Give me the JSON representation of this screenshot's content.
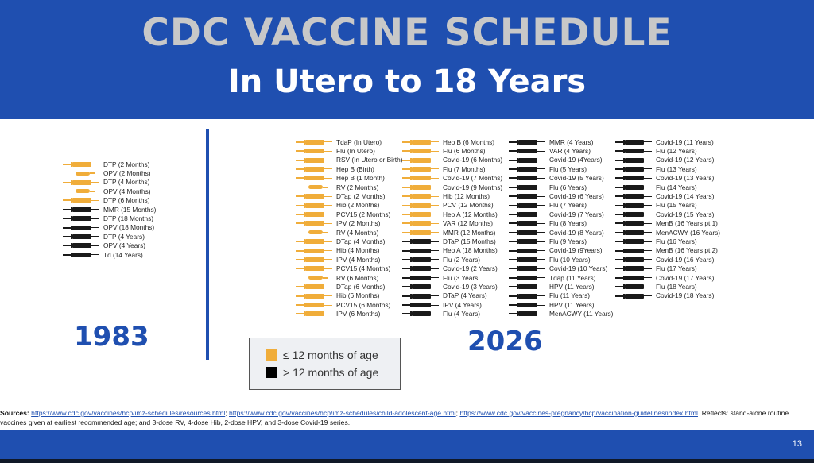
{
  "slide": {
    "title": "CDC VACCINE SCHEDULE",
    "subtitle": "In Utero to 18 Years",
    "page_number": "13"
  },
  "colors": {
    "yellow": "#f0ad3a",
    "black": "#1a1a1a",
    "brand_blue": "#1f4fb0"
  },
  "year_1983": "1983",
  "year_2026": "2026",
  "legend": {
    "yellow_label": "≤ 12 months of age",
    "black_label": "> 12 months of age"
  },
  "columns": [
    {
      "items": [
        {
          "label": "DTP (2 Months)",
          "color": "yellow",
          "kind": "injection"
        },
        {
          "label": "OPV (2 Months)",
          "color": "yellow",
          "kind": "oral"
        },
        {
          "label": "DTP (4 Months)",
          "color": "yellow",
          "kind": "injection"
        },
        {
          "label": "OPV (4 Months)",
          "color": "yellow",
          "kind": "oral"
        },
        {
          "label": "DTP (6 Months)",
          "color": "yellow",
          "kind": "injection"
        },
        {
          "label": "MMR (15 Months)",
          "color": "black",
          "kind": "injection"
        },
        {
          "label": "DTP (18 Months)",
          "color": "black",
          "kind": "injection"
        },
        {
          "label": "OPV (18 Months)",
          "color": "black",
          "kind": "injection"
        },
        {
          "label": "DTP (4 Years)",
          "color": "black",
          "kind": "injection"
        },
        {
          "label": "OPV (4 Years)",
          "color": "black",
          "kind": "injection"
        },
        {
          "label": "Td (14 Years)",
          "color": "black",
          "kind": "injection"
        }
      ]
    },
    {
      "items": [
        {
          "label": "TdaP (In Utero)",
          "color": "yellow",
          "kind": "injection"
        },
        {
          "label": "Flu (In Utero)",
          "color": "yellow",
          "kind": "injection"
        },
        {
          "label": "RSV (In Utero or Birth)",
          "color": "yellow",
          "kind": "injection"
        },
        {
          "label": "Hep B (Birth)",
          "color": "yellow",
          "kind": "injection"
        },
        {
          "label": "Hep B (1 Month)",
          "color": "yellow",
          "kind": "injection"
        },
        {
          "label": "RV (2 Months)",
          "color": "yellow",
          "kind": "oral"
        },
        {
          "label": "DTap (2 Months)",
          "color": "yellow",
          "kind": "injection"
        },
        {
          "label": "Hib (2 Months)",
          "color": "yellow",
          "kind": "injection"
        },
        {
          "label": "PCV15 (2 Months)",
          "color": "yellow",
          "kind": "injection"
        },
        {
          "label": "IPV (2 Months)",
          "color": "yellow",
          "kind": "injection"
        },
        {
          "label": "RV (4 Months)",
          "color": "yellow",
          "kind": "oral"
        },
        {
          "label": "DTap (4 Months)",
          "color": "yellow",
          "kind": "injection"
        },
        {
          "label": "Hib (4 Months)",
          "color": "yellow",
          "kind": "injection"
        },
        {
          "label": "IPV (4 Months)",
          "color": "yellow",
          "kind": "injection"
        },
        {
          "label": "PCV15 (4 Months)",
          "color": "yellow",
          "kind": "injection"
        },
        {
          "label": "RV (6 Months)",
          "color": "yellow",
          "kind": "oral"
        },
        {
          "label": "DTap (6 Months)",
          "color": "yellow",
          "kind": "injection"
        },
        {
          "label": "Hib (6 Months)",
          "color": "yellow",
          "kind": "injection"
        },
        {
          "label": "PCV15 (6 Months)",
          "color": "yellow",
          "kind": "injection"
        },
        {
          "label": "IPV (6 Months)",
          "color": "yellow",
          "kind": "injection"
        }
      ]
    },
    {
      "items": [
        {
          "label": "Hep B (6 Months)",
          "color": "yellow",
          "kind": "injection"
        },
        {
          "label": "Flu (6 Months)",
          "color": "yellow",
          "kind": "injection"
        },
        {
          "label": "Covid-19 (6 Months)",
          "color": "yellow",
          "kind": "injection"
        },
        {
          "label": "Flu (7 Months)",
          "color": "yellow",
          "kind": "injection"
        },
        {
          "label": "Covid-19 (7 Months)",
          "color": "yellow",
          "kind": "injection"
        },
        {
          "label": "Covid-19 (9 Months)",
          "color": "yellow",
          "kind": "injection"
        },
        {
          "label": "Hib (12 Months)",
          "color": "yellow",
          "kind": "injection"
        },
        {
          "label": "PCV (12 Months)",
          "color": "yellow",
          "kind": "injection"
        },
        {
          "label": "Hep A (12 Months)",
          "color": "yellow",
          "kind": "injection"
        },
        {
          "label": "VAR (12 Months)",
          "color": "yellow",
          "kind": "injection"
        },
        {
          "label": "MMR (12 Months)",
          "color": "yellow",
          "kind": "injection"
        },
        {
          "label": "DTaP (15 Months)",
          "color": "black",
          "kind": "injection"
        },
        {
          "label": "Hep A (18 Months)",
          "color": "black",
          "kind": "injection"
        },
        {
          "label": "Flu (2 Years)",
          "color": "black",
          "kind": "injection"
        },
        {
          "label": "Covid-19 (2 Years)",
          "color": "black",
          "kind": "injection"
        },
        {
          "label": "Flu (3 Years",
          "color": "black",
          "kind": "injection"
        },
        {
          "label": "Covid-19 (3 Years)",
          "color": "black",
          "kind": "injection"
        },
        {
          "label": "DTaP (4 Years)",
          "color": "black",
          "kind": "injection"
        },
        {
          "label": "IPV (4 Years)",
          "color": "black",
          "kind": "injection"
        },
        {
          "label": "Flu (4 Years)",
          "color": "black",
          "kind": "injection"
        }
      ]
    },
    {
      "items": [
        {
          "label": "MMR (4 Years)",
          "color": "black",
          "kind": "injection"
        },
        {
          "label": "VAR (4 Years)",
          "color": "black",
          "kind": "injection"
        },
        {
          "label": "Covid-19 (4Years)",
          "color": "black",
          "kind": "injection"
        },
        {
          "label": "Flu (5 Years)",
          "color": "black",
          "kind": "injection"
        },
        {
          "label": "Covid-19 (5 Years)",
          "color": "black",
          "kind": "injection"
        },
        {
          "label": "Flu (6 Years)",
          "color": "black",
          "kind": "injection"
        },
        {
          "label": "Covid-19 (6 Years)",
          "color": "black",
          "kind": "injection"
        },
        {
          "label": "Flu (7 Years)",
          "color": "black",
          "kind": "injection"
        },
        {
          "label": "Covid-19 (7 Years)",
          "color": "black",
          "kind": "injection"
        },
        {
          "label": "Flu (8 Years)",
          "color": "black",
          "kind": "injection"
        },
        {
          "label": "Covid-19 (8 Years)",
          "color": "black",
          "kind": "injection"
        },
        {
          "label": "Flu (9 Years)",
          "color": "black",
          "kind": "injection"
        },
        {
          "label": "Covid-19 (9Years)",
          "color": "black",
          "kind": "injection"
        },
        {
          "label": "Flu (10 Years)",
          "color": "black",
          "kind": "injection"
        },
        {
          "label": "Covid-19 (10 Years)",
          "color": "black",
          "kind": "injection"
        },
        {
          "label": "Tdap (11 Years)",
          "color": "black",
          "kind": "injection"
        },
        {
          "label": "HPV (11 Years)",
          "color": "black",
          "kind": "injection"
        },
        {
          "label": "Flu (11 Years)",
          "color": "black",
          "kind": "injection"
        },
        {
          "label": "HPV (11 Years)",
          "color": "black",
          "kind": "injection"
        },
        {
          "label": "MenACWY (11 Years)",
          "color": "black",
          "kind": "injection"
        }
      ]
    },
    {
      "items": [
        {
          "label": "Covid-19 (11 Years)",
          "color": "black",
          "kind": "injection"
        },
        {
          "label": "Flu (12 Years)",
          "color": "black",
          "kind": "injection"
        },
        {
          "label": "Covid-19 (12 Years)",
          "color": "black",
          "kind": "injection"
        },
        {
          "label": "Flu (13 Years)",
          "color": "black",
          "kind": "injection"
        },
        {
          "label": "Covid-19 (13 Years)",
          "color": "black",
          "kind": "injection"
        },
        {
          "label": "Flu (14 Years)",
          "color": "black",
          "kind": "injection"
        },
        {
          "label": "Covid-19 (14 Years)",
          "color": "black",
          "kind": "injection"
        },
        {
          "label": "Flu (15 Years)",
          "color": "black",
          "kind": "injection"
        },
        {
          "label": "Covid-19 (15 Years)",
          "color": "black",
          "kind": "injection"
        },
        {
          "label": "MenB (16 Years pt.1)",
          "color": "black",
          "kind": "injection"
        },
        {
          "label": "MenACWY (16 Years)",
          "color": "black",
          "kind": "injection"
        },
        {
          "label": "Flu (16 Years)",
          "color": "black",
          "kind": "injection"
        },
        {
          "label": "MenB (16 Years pt.2)",
          "color": "black",
          "kind": "injection"
        },
        {
          "label": "Covid-19 (16 Years)",
          "color": "black",
          "kind": "injection"
        },
        {
          "label": "Flu (17 Years)",
          "color": "black",
          "kind": "injection"
        },
        {
          "label": "Covid-19 (17 Years)",
          "color": "black",
          "kind": "injection"
        },
        {
          "label": "Flu (18 Years)",
          "color": "black",
          "kind": "injection"
        },
        {
          "label": "Covid-19 (18 Years)",
          "color": "black",
          "kind": "injection"
        }
      ]
    }
  ],
  "sources": {
    "prefix": "Sources: ",
    "links": [
      "https://www.cdc.gov/vaccines/hcp/imz-schedules/resources.html",
      "https://www.cdc.gov/vaccines/hcp/imz-schedules/child-adolescent-age.html",
      "https://www.cdc.gov/vaccines-pregnancy/hcp/vaccination-guidelines/index.html"
    ],
    "separator": "; ",
    "note": ". Reflects: stand-alone routine vaccines given at earliest recommended age; and 3-dose RV, 4-dose Hib, 2-dose HPV, and 3-dose Covid-19 series."
  }
}
